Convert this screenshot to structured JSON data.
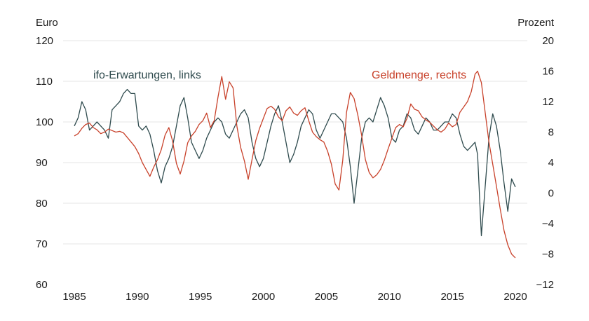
{
  "chart_data": {
    "type": "line",
    "left_axis": {
      "unit": "Euro",
      "ylim": [
        60,
        120
      ],
      "ticks": [
        60,
        70,
        80,
        90,
        100,
        110,
        120
      ]
    },
    "right_axis": {
      "unit": "Prozent",
      "ylim": [
        -12,
        20
      ],
      "ticks": [
        "−12",
        "−8",
        "−4",
        "0",
        "4",
        "8",
        "12",
        "16",
        "20"
      ],
      "tick_values": [
        -12,
        -8,
        -4,
        0,
        4,
        8,
        12,
        16,
        20
      ]
    },
    "x_axis": {
      "xlim": [
        1985,
        2020.5
      ],
      "ticks": [
        1985,
        1990,
        1995,
        2000,
        2005,
        2010,
        2015,
        2020
      ]
    },
    "grid": "horizontal",
    "series": [
      {
        "name": "ifo-Erwartungen, links",
        "axis": "left",
        "color": "#2f4b4e",
        "x": [
          1985.0,
          1985.3,
          1985.6,
          1985.9,
          1986.2,
          1986.5,
          1986.8,
          1987.1,
          1987.4,
          1987.7,
          1988.0,
          1988.3,
          1988.6,
          1988.9,
          1989.2,
          1989.5,
          1989.8,
          1990.1,
          1990.4,
          1990.7,
          1991.0,
          1991.3,
          1991.6,
          1991.9,
          1992.2,
          1992.5,
          1992.8,
          1993.1,
          1993.4,
          1993.7,
          1994.0,
          1994.3,
          1994.6,
          1994.9,
          1995.2,
          1995.5,
          1995.8,
          1996.1,
          1996.4,
          1996.7,
          1997.0,
          1997.3,
          1997.6,
          1997.9,
          1998.2,
          1998.5,
          1998.8,
          1999.1,
          1999.4,
          1999.7,
          2000.0,
          2000.3,
          2000.6,
          2000.9,
          2001.2,
          2001.5,
          2001.8,
          2002.1,
          2002.4,
          2002.7,
          2003.0,
          2003.3,
          2003.6,
          2003.9,
          2004.2,
          2004.5,
          2004.8,
          2005.1,
          2005.4,
          2005.7,
          2006.0,
          2006.3,
          2006.6,
          2006.9,
          2007.2,
          2007.5,
          2007.8,
          2008.1,
          2008.4,
          2008.7,
          2009.0,
          2009.3,
          2009.6,
          2009.9,
          2010.2,
          2010.5,
          2010.8,
          2011.1,
          2011.4,
          2011.7,
          2012.0,
          2012.3,
          2012.6,
          2012.9,
          2013.2,
          2013.5,
          2013.8,
          2014.1,
          2014.4,
          2014.7,
          2015.0,
          2015.3,
          2015.6,
          2015.9,
          2016.2,
          2016.5,
          2016.8,
          2017.0,
          2017.3,
          2017.6,
          2017.9,
          2018.2,
          2018.5,
          2018.8,
          2019.1,
          2019.4,
          2019.7,
          2020.0
        ],
        "values": [
          99,
          101,
          105,
          103,
          98,
          99,
          100,
          99,
          98,
          96,
          103,
          104,
          105,
          107,
          108,
          107,
          107,
          99,
          98,
          99,
          97,
          93,
          88,
          85,
          89,
          91,
          94,
          99,
          104,
          106,
          101,
          95,
          93,
          91,
          93,
          96,
          98,
          100,
          101,
          100,
          97,
          96,
          98,
          100,
          102,
          103,
          101,
          95,
          91,
          89,
          91,
          95,
          99,
          102,
          104,
          100,
          95,
          90,
          92,
          95,
          99,
          101,
          103,
          102,
          98,
          96,
          98,
          100,
          102,
          102,
          101,
          100,
          96,
          89,
          80,
          88,
          96,
          100,
          101,
          100,
          103,
          106,
          104,
          101,
          96,
          95,
          98,
          99,
          102,
          101,
          98,
          97,
          99,
          101,
          100,
          98,
          98,
          99,
          100,
          100,
          102,
          101,
          97,
          94,
          93,
          94,
          95,
          92,
          72,
          84,
          96,
          102,
          99,
          93,
          85,
          78,
          86,
          84
        ]
      },
      {
        "name": "Geldmenge, rechts",
        "axis": "right",
        "color": "#c8412a",
        "x": [
          1985.0,
          1985.3,
          1985.6,
          1985.9,
          1986.2,
          1986.5,
          1986.8,
          1987.1,
          1987.4,
          1987.7,
          1988.0,
          1988.3,
          1988.6,
          1988.9,
          1989.2,
          1989.5,
          1989.8,
          1990.1,
          1990.4,
          1990.7,
          1991.0,
          1991.3,
          1991.6,
          1991.9,
          1992.2,
          1992.5,
          1992.8,
          1993.1,
          1993.4,
          1993.7,
          1994.0,
          1994.3,
          1994.6,
          1994.9,
          1995.2,
          1995.5,
          1995.8,
          1996.1,
          1996.4,
          1996.7,
          1997.0,
          1997.3,
          1997.6,
          1997.9,
          1998.2,
          1998.5,
          1998.8,
          1999.1,
          1999.4,
          1999.7,
          2000.0,
          2000.3,
          2000.6,
          2000.9,
          2001.2,
          2001.5,
          2001.8,
          2002.1,
          2002.4,
          2002.7,
          2003.0,
          2003.3,
          2003.6,
          2003.9,
          2004.2,
          2004.5,
          2004.8,
          2005.1,
          2005.4,
          2005.7,
          2006.0,
          2006.3,
          2006.6,
          2006.9,
          2007.2,
          2007.5,
          2007.8,
          2008.1,
          2008.4,
          2008.7,
          2009.0,
          2009.3,
          2009.6,
          2009.9,
          2010.2,
          2010.5,
          2010.8,
          2011.1,
          2011.4,
          2011.7,
          2012.0,
          2012.3,
          2012.6,
          2012.9,
          2013.2,
          2013.5,
          2013.8,
          2014.1,
          2014.4,
          2014.7,
          2015.0,
          2015.3,
          2015.6,
          2015.9,
          2016.2,
          2016.5,
          2016.8,
          2017.0,
          2017.3,
          2017.6,
          2017.9,
          2018.2,
          2018.5,
          2018.8,
          2019.1,
          2019.4,
          2019.7,
          2020.0
        ],
        "values": [
          7.5,
          7.8,
          8.5,
          9.0,
          9.2,
          8.6,
          8.3,
          7.8,
          8.0,
          8.4,
          8.2,
          8.0,
          8.1,
          7.9,
          7.3,
          6.7,
          6.1,
          5.2,
          4.0,
          3.1,
          2.2,
          3.4,
          4.4,
          5.7,
          7.6,
          8.6,
          6.8,
          3.9,
          2.5,
          4.2,
          6.6,
          7.5,
          8.1,
          9.0,
          9.5,
          10.5,
          8.6,
          9.5,
          12.6,
          15.3,
          12.3,
          14.6,
          13.8,
          8.8,
          6.0,
          4.2,
          1.8,
          4.4,
          6.9,
          8.5,
          9.8,
          11.1,
          11.4,
          11.0,
          10.0,
          9.5,
          10.8,
          11.3,
          10.5,
          10.2,
          10.8,
          11.2,
          9.5,
          8.0,
          7.4,
          7.0,
          6.7,
          5.5,
          3.8,
          1.2,
          0.4,
          4.3,
          10.6,
          13.2,
          12.4,
          10.2,
          7.6,
          4.4,
          2.7,
          2.0,
          2.4,
          3.1,
          4.3,
          5.8,
          7.2,
          8.6,
          9.0,
          8.7,
          9.8,
          11.7,
          11.0,
          10.8,
          10.0,
          9.6,
          9.3,
          8.8,
          8.3,
          8.0,
          8.4,
          9.2,
          8.7,
          9.0,
          10.6,
          11.3,
          12.0,
          13.3,
          15.6,
          16.0,
          14.5,
          10.6,
          6.7,
          3.8,
          0.9,
          -2.1,
          -4.9,
          -6.8,
          -8.0,
          -8.5
        ]
      }
    ]
  }
}
